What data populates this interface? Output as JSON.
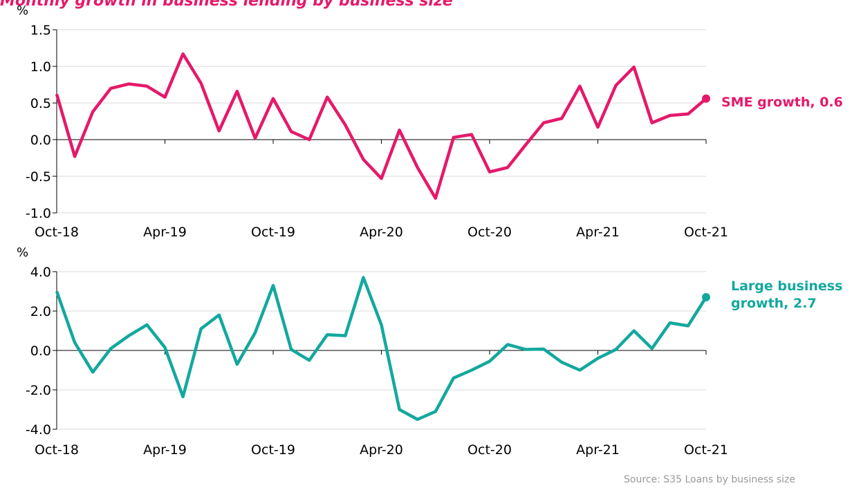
{
  "source": "Source:  S35 Loans by business size",
  "chart_data": [
    {
      "type": "line",
      "title": "Monthly growth in business lending by business size",
      "ylabel": "%",
      "categories": [
        "Oct-18",
        null,
        null,
        null,
        null,
        null,
        "Apr-19",
        null,
        null,
        null,
        null,
        null,
        "Oct-19",
        null,
        null,
        null,
        null,
        null,
        "Apr-20",
        null,
        null,
        null,
        null,
        null,
        "Oct-20",
        null,
        null,
        null,
        null,
        null,
        "Apr-21",
        null,
        null,
        null,
        null,
        null,
        "Oct-21"
      ],
      "series": [
        {
          "name": "SME growth",
          "color": "#e5196a",
          "values": [
            0.62,
            -0.23,
            0.38,
            0.7,
            0.76,
            0.73,
            0.58,
            1.17,
            0.77,
            0.12,
            0.66,
            0.02,
            0.56,
            0.11,
            0.0,
            0.58,
            0.2,
            -0.27,
            -0.53,
            0.13,
            -0.38,
            -0.8,
            0.03,
            0.07,
            -0.44,
            -0.38,
            -0.07,
            0.23,
            0.29,
            0.73,
            0.17,
            0.74,
            0.99,
            0.23,
            0.33,
            0.35,
            0.56
          ]
        }
      ],
      "annotation": "SME growth, 0.6",
      "ylim": [
        -1.0,
        1.5
      ],
      "yticks": [
        1.5,
        {
          "value": 1.0,
          "label": "1.0"
        },
        0.5,
        {
          "value": 0,
          "label": "0.0"
        },
        -0.5,
        {
          "value": -1.0,
          "label": "-1.0"
        }
      ],
      "grid": true
    },
    {
      "type": "line",
      "ylabel": "%",
      "categories": [
        "Oct-18",
        null,
        null,
        null,
        null,
        null,
        "Apr-19",
        null,
        null,
        null,
        null,
        null,
        "Oct-19",
        null,
        null,
        null,
        null,
        null,
        "Apr-20",
        null,
        null,
        null,
        null,
        null,
        "Oct-20",
        null,
        null,
        null,
        null,
        null,
        "Apr-21",
        null,
        null,
        null,
        null,
        null,
        "Oct-21"
      ],
      "series": [
        {
          "name": "Large business growth",
          "color": "#13a89e",
          "values": [
            3.0,
            0.4,
            -1.1,
            0.1,
            0.75,
            1.3,
            0.15,
            -2.35,
            1.1,
            1.8,
            -0.7,
            0.9,
            3.3,
            0.05,
            -0.5,
            0.8,
            0.75,
            3.7,
            1.3,
            -3.0,
            -3.5,
            -3.1,
            -1.4,
            -1.0,
            -0.55,
            0.3,
            0.05,
            0.07,
            -0.6,
            -1.0,
            -0.4,
            0.05,
            1.0,
            0.1,
            1.4,
            1.25,
            2.7
          ]
        }
      ],
      "annotation": "Large business growth, 2.7",
      "ylim": [
        -4.0,
        4.0
      ],
      "yticks": [
        {
          "value": 4.0,
          "label": "4.0"
        },
        {
          "value": 2.0,
          "label": "2.0"
        },
        {
          "value": 0,
          "label": "0.0"
        },
        {
          "value": -2.0,
          "label": "-2.0"
        },
        {
          "value": -4.0,
          "label": "-4.0"
        }
      ],
      "grid": true
    }
  ]
}
